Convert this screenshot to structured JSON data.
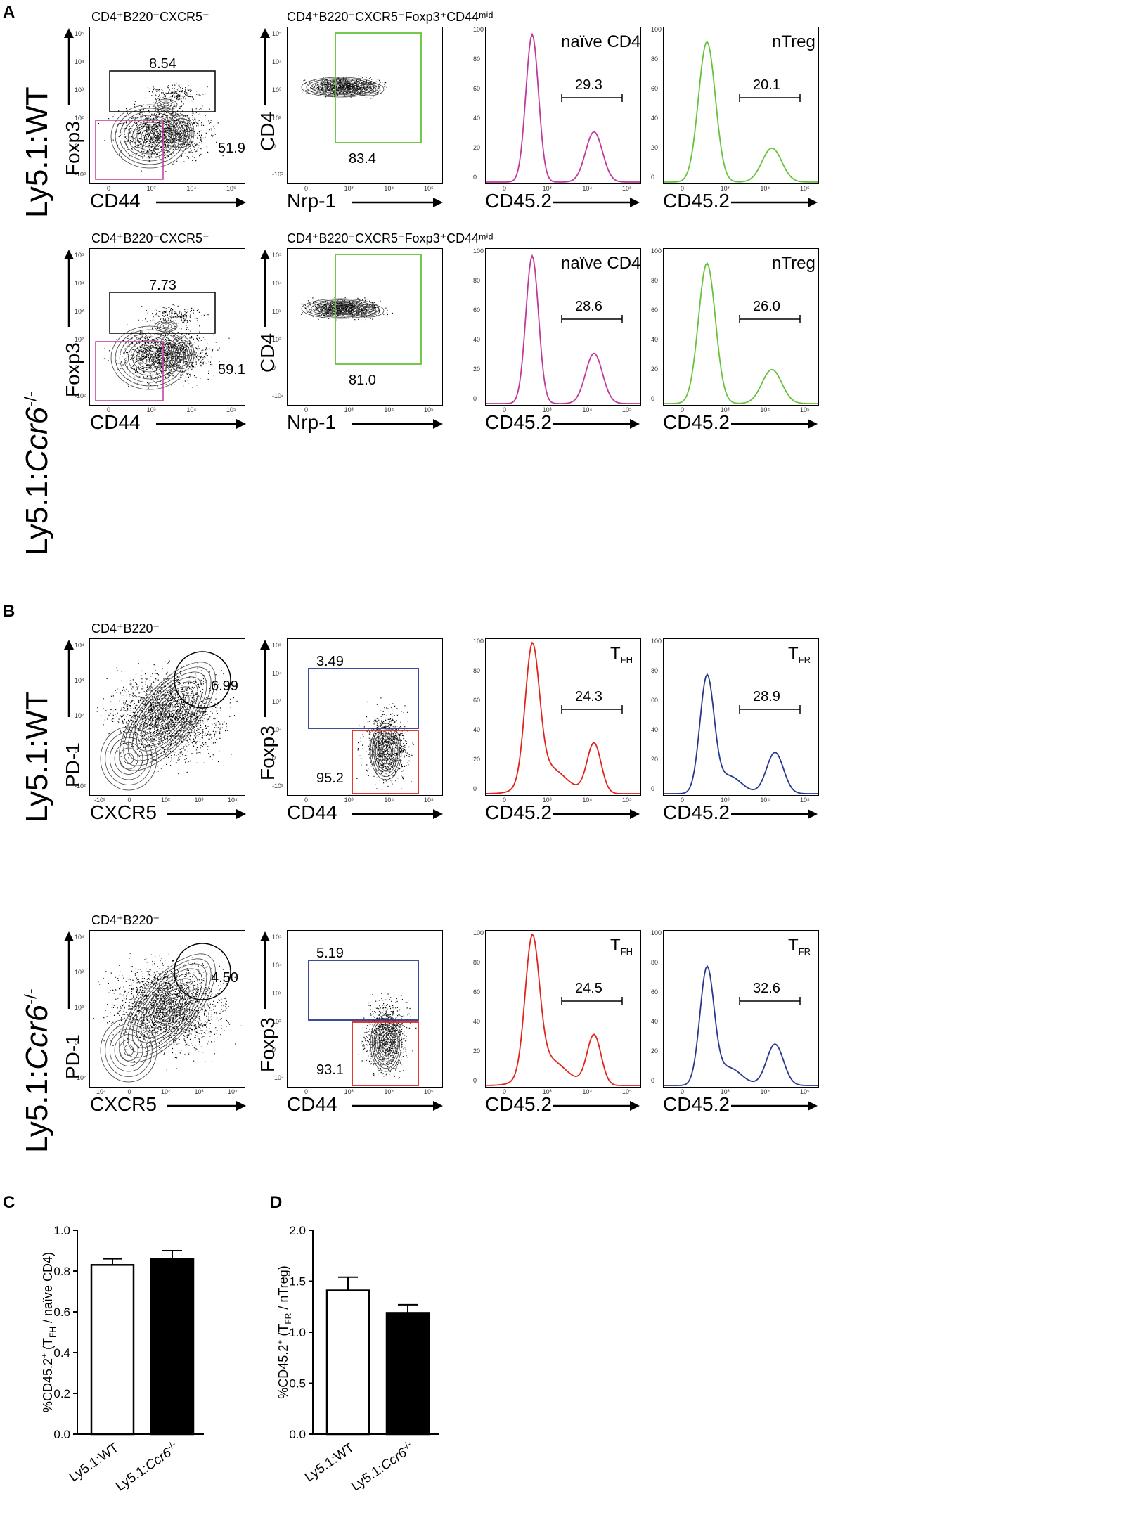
{
  "panels": {
    "a": "A",
    "b": "B",
    "c": "C",
    "d": "D"
  },
  "rows": {
    "wt": "Ly5.1:WT",
    "ko_prefix": "Ly5.1:",
    "ko_gene": "Ccr6",
    "ko_sup": "-/-"
  },
  "gates": {
    "a1": "CD4⁺B220⁻CXCR5⁻",
    "a2": "CD4⁺B220⁻CXCR5⁻Foxp3⁺CD44ᵐⁱᵈ",
    "b1": "CD4⁺B220⁻"
  },
  "axes": {
    "foxp3": "Foxp3",
    "cd44": "CD44",
    "cd4": "CD4",
    "nrp1": "Nrp-1",
    "cd452": "CD45.2",
    "pd1": "PD-1",
    "cxcr5": "CXCR5"
  },
  "hist_labels": {
    "naive": "naïve CD4",
    "ntreg": "nTreg",
    "tfh_t": "T",
    "tfh_sub": "FH",
    "tfr_t": "T",
    "tfr_sub": "FR"
  },
  "values": {
    "a_wt_foxp3": "8.54",
    "a_wt_neg": "51.9",
    "a_wt_nrp": "83.4",
    "a_wt_naive": "29.3",
    "a_wt_ntreg": "20.1",
    "a_ko_foxp3": "7.73",
    "a_ko_neg": "59.1",
    "a_ko_nrp": "81.0",
    "a_ko_naive": "28.6",
    "a_ko_ntreg": "26.0",
    "b_wt_tfh": "6.99",
    "b_wt_blue": "3.49",
    "b_wt_red": "95.2",
    "b_wt_tfhh": "24.3",
    "b_wt_tfr": "28.9",
    "b_ko_tfh": "4.50",
    "b_ko_blue": "5.19",
    "b_ko_red": "93.1",
    "b_ko_tfhh": "24.5",
    "b_ko_tfr": "32.6"
  },
  "ticks": {
    "log5": [
      "10⁵",
      "10⁴",
      "10³",
      "10²",
      "0",
      "-10²"
    ],
    "logx": [
      "0",
      "10³",
      "10⁴",
      "10⁵"
    ],
    "hist_y": [
      "100",
      "80",
      "60",
      "40",
      "20",
      "0"
    ],
    "hist_x": [
      "0",
      "10³",
      "10⁴",
      "10⁵"
    ],
    "b_x": [
      "-10²",
      "0",
      "10²",
      "10³",
      "10⁴"
    ],
    "b_y": [
      "10⁴",
      "10³",
      "10²",
      "0",
      "-10²"
    ]
  },
  "chart_data": [
    {
      "type": "bar",
      "title": "",
      "categories": [
        "Ly5.1:WT",
        "Ly5.1:Ccr6-/-"
      ],
      "values": [
        0.83,
        0.86
      ],
      "errors": [
        0.03,
        0.04
      ],
      "fills": [
        "#ffffff",
        "#000000"
      ],
      "ylabel": "%CD45.2⁺ (TFH / naïve CD4)",
      "ylabel_pre": "%CD45.2",
      "ylabel_sup": "+",
      "ylabel_mid": " (T",
      "ylabel_sub": "FH",
      "ylabel_post": " / naïve CD4)",
      "ylim": [
        0,
        1.0
      ],
      "yticks": [
        "0.0",
        "0.2",
        "0.4",
        "0.6",
        "0.8",
        "1.0"
      ]
    },
    {
      "type": "bar",
      "title": "",
      "categories": [
        "Ly5.1:WT",
        "Ly5.1:Ccr6-/-"
      ],
      "values": [
        1.41,
        1.19
      ],
      "errors": [
        0.13,
        0.08
      ],
      "fills": [
        "#ffffff",
        "#000000"
      ],
      "ylabel": "%CD45.2⁺ (TFR / nTreg)",
      "ylabel_pre": "%CD45.2",
      "ylabel_sup": "+",
      "ylabel_mid": " (T",
      "ylabel_sub": "FR",
      "ylabel_post": " / nTreg)",
      "ylim": [
        0,
        2.0
      ],
      "yticks": [
        "0.0",
        "0.5",
        "1.0",
        "1.5",
        "2.0"
      ]
    }
  ],
  "colors": {
    "magenta": "#c0399a",
    "green": "#66c23a",
    "red": "#e2231a",
    "blue": "#27388e"
  }
}
